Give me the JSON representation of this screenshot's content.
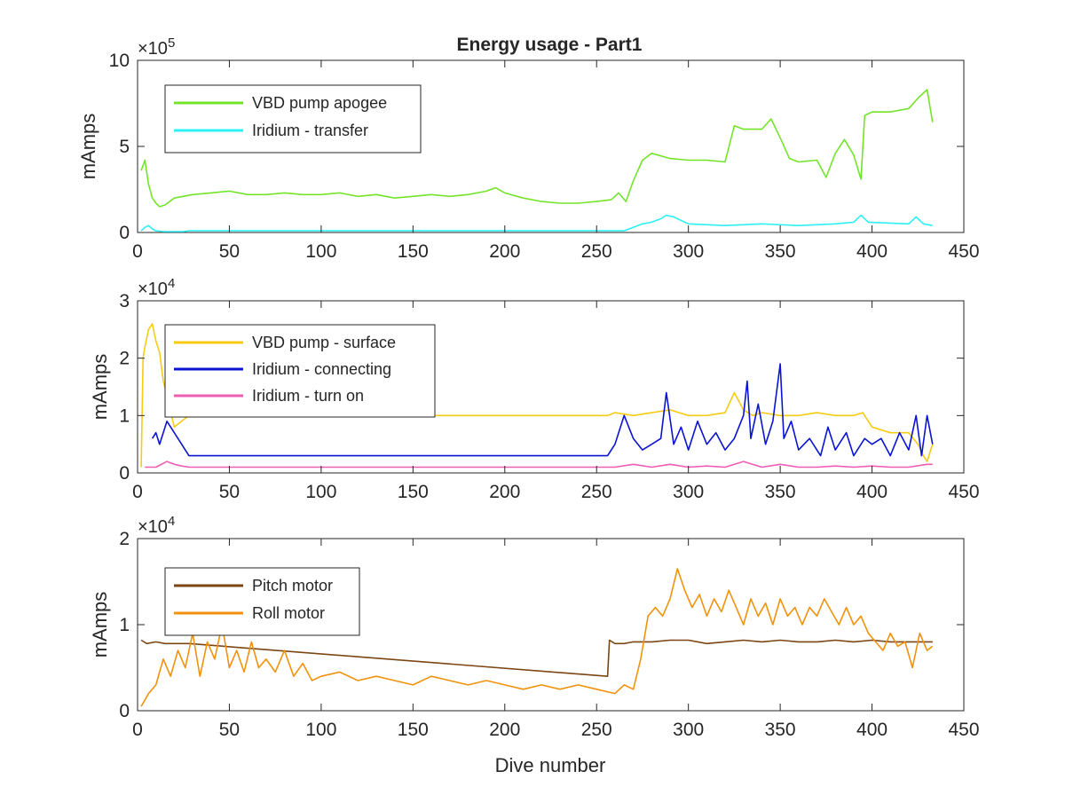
{
  "figure": {
    "title": "Energy usage - Part1",
    "xlabel": "Dive number"
  },
  "chart_data": [
    {
      "type": "line",
      "title": "Energy usage - Part1",
      "xlabel": "",
      "ylabel": "mAmps",
      "xlim": [
        0,
        450
      ],
      "ylim": [
        0,
        10
      ],
      "xticks": [
        0,
        50,
        100,
        150,
        200,
        250,
        300,
        350,
        400,
        450
      ],
      "yticks": [
        0,
        5,
        10
      ],
      "exponent": "5",
      "grid": false,
      "legend_position": "top-left",
      "series": [
        {
          "name": "VBD pump apogee",
          "color": "#74e42a",
          "style": "solid",
          "x": [
            2,
            4,
            6,
            8,
            10,
            12,
            15,
            20,
            30,
            40,
            50,
            60,
            70,
            80,
            90,
            100,
            110,
            120,
            130,
            140,
            150,
            160,
            170,
            180,
            190,
            195,
            200,
            210,
            220,
            230,
            240,
            250,
            258,
            262,
            266,
            270,
            275,
            280,
            290,
            300,
            310,
            320,
            325,
            330,
            340,
            345,
            350,
            355,
            360,
            370,
            375,
            380,
            385,
            390,
            394,
            396,
            400,
            410,
            420,
            425,
            430,
            433
          ],
          "y": [
            3.6,
            4.2,
            2.8,
            2.0,
            1.7,
            1.5,
            1.6,
            2.0,
            2.2,
            2.3,
            2.4,
            2.2,
            2.2,
            2.3,
            2.2,
            2.2,
            2.3,
            2.1,
            2.2,
            2.0,
            2.1,
            2.2,
            2.1,
            2.2,
            2.4,
            2.6,
            2.3,
            2.0,
            1.8,
            1.7,
            1.7,
            1.8,
            1.9,
            2.3,
            1.8,
            3.0,
            4.2,
            4.6,
            4.3,
            4.2,
            4.2,
            4.1,
            6.2,
            6.0,
            6.0,
            6.6,
            5.5,
            4.3,
            4.1,
            4.2,
            3.2,
            4.6,
            5.4,
            4.5,
            3.1,
            6.8,
            7.0,
            7.0,
            7.2,
            7.8,
            8.3,
            6.4
          ]
        },
        {
          "name": "Iridium - transfer",
          "color": "#2df0f5",
          "style": "solid",
          "x": [
            2,
            4,
            6,
            8,
            10,
            14,
            20,
            25,
            28,
            260,
            265,
            270,
            275,
            280,
            285,
            288,
            292,
            296,
            300,
            320,
            340,
            360,
            380,
            390,
            394,
            398,
            420,
            424,
            428,
            433
          ],
          "y": [
            0.1,
            0.3,
            0.4,
            0.2,
            0.1,
            0.05,
            0.05,
            0.05,
            0.1,
            0.1,
            0.1,
            0.3,
            0.5,
            0.6,
            0.8,
            1.0,
            0.9,
            0.7,
            0.5,
            0.4,
            0.5,
            0.4,
            0.5,
            0.6,
            1.0,
            0.6,
            0.5,
            0.9,
            0.5,
            0.4
          ]
        }
      ]
    },
    {
      "type": "line",
      "title": "",
      "xlabel": "",
      "ylabel": "mAmps",
      "xlim": [
        0,
        450
      ],
      "ylim": [
        0,
        3
      ],
      "xticks": [
        0,
        50,
        100,
        150,
        200,
        250,
        300,
        350,
        400,
        450
      ],
      "yticks": [
        0,
        1,
        2,
        3
      ],
      "exponent": "4",
      "grid": false,
      "legend_position": "top-left",
      "series": [
        {
          "name": "VBD pump - surface",
          "color": "#f5cc13",
          "style": "solid",
          "x": [
            2,
            3,
            4,
            6,
            8,
            10,
            12,
            14,
            17,
            20,
            24,
            28,
            256,
            260,
            270,
            280,
            290,
            300,
            310,
            320,
            325,
            330,
            335,
            340,
            350,
            360,
            370,
            380,
            390,
            395,
            400,
            410,
            420,
            425,
            428,
            430,
            433
          ],
          "y": [
            0.1,
            2.0,
            2.2,
            2.5,
            2.6,
            2.3,
            2.1,
            1.6,
            1.2,
            0.8,
            0.9,
            1.0,
            1.0,
            1.05,
            1.0,
            1.05,
            1.1,
            1.0,
            1.0,
            1.05,
            1.4,
            1.1,
            1.0,
            1.05,
            1.0,
            1.0,
            1.05,
            1.0,
            1.0,
            1.05,
            0.8,
            0.7,
            0.7,
            0.5,
            0.3,
            0.2,
            0.5
          ]
        },
        {
          "name": "Iridium - connecting",
          "color": "#0a14d2",
          "style": "solid",
          "x": [
            8,
            10,
            12,
            16,
            20,
            24,
            28,
            256,
            260,
            265,
            270,
            275,
            280,
            285,
            288,
            292,
            296,
            300,
            305,
            310,
            315,
            320,
            325,
            330,
            332,
            334,
            338,
            342,
            346,
            350,
            352,
            356,
            360,
            366,
            372,
            376,
            380,
            386,
            390,
            396,
            400,
            405,
            410,
            415,
            420,
            424,
            427,
            430,
            433
          ],
          "y": [
            0.6,
            0.7,
            0.5,
            0.9,
            0.7,
            0.5,
            0.3,
            0.3,
            0.5,
            1.0,
            0.6,
            0.4,
            0.5,
            0.6,
            1.4,
            0.5,
            0.8,
            0.4,
            0.9,
            0.5,
            0.7,
            0.4,
            0.6,
            1.0,
            1.6,
            0.6,
            1.2,
            0.5,
            0.9,
            1.9,
            0.6,
            0.9,
            0.4,
            0.6,
            0.3,
            0.8,
            0.4,
            0.7,
            0.3,
            0.6,
            0.5,
            0.6,
            0.3,
            0.7,
            0.4,
            1.0,
            0.3,
            1.0,
            0.5
          ]
        },
        {
          "name": "Iridium - turn on",
          "color": "#ef5cb4",
          "style": "solid",
          "x": [
            4,
            10,
            16,
            20,
            24,
            28,
            256,
            260,
            270,
            280,
            290,
            300,
            310,
            320,
            330,
            340,
            350,
            360,
            370,
            380,
            390,
            400,
            410,
            420,
            430,
            433
          ],
          "y": [
            0.1,
            0.1,
            0.2,
            0.15,
            0.12,
            0.1,
            0.1,
            0.1,
            0.15,
            0.1,
            0.15,
            0.1,
            0.12,
            0.1,
            0.2,
            0.1,
            0.15,
            0.1,
            0.1,
            0.12,
            0.1,
            0.12,
            0.1,
            0.1,
            0.15,
            0.15
          ]
        }
      ]
    },
    {
      "type": "line",
      "title": "",
      "xlabel": "Dive number",
      "ylabel": "mAmps",
      "xlim": [
        0,
        450
      ],
      "ylim": [
        0,
        2
      ],
      "xticks": [
        0,
        50,
        100,
        150,
        200,
        250,
        300,
        350,
        400,
        450
      ],
      "yticks": [
        0,
        1,
        2
      ],
      "exponent": "4",
      "grid": false,
      "legend_position": "top-left",
      "series": [
        {
          "name": "Pitch motor",
          "color": "#7b4614",
          "style": "solid",
          "x": [
            2,
            5,
            10,
            15,
            20,
            25,
            28,
            256,
            257,
            260,
            265,
            270,
            280,
            290,
            300,
            310,
            320,
            330,
            340,
            350,
            360,
            370,
            380,
            390,
            400,
            410,
            420,
            430,
            433
          ],
          "y": [
            0.82,
            0.78,
            0.8,
            0.78,
            0.78,
            0.78,
            0.78,
            0.4,
            0.82,
            0.78,
            0.78,
            0.8,
            0.8,
            0.82,
            0.82,
            0.78,
            0.8,
            0.82,
            0.8,
            0.82,
            0.8,
            0.8,
            0.82,
            0.8,
            0.82,
            0.8,
            0.8,
            0.8,
            0.8
          ]
        },
        {
          "name": "Roll motor",
          "color": "#f0920c",
          "style": "solid",
          "x": [
            2,
            6,
            10,
            14,
            18,
            22,
            26,
            30,
            34,
            38,
            42,
            46,
            50,
            54,
            58,
            62,
            66,
            70,
            75,
            80,
            85,
            90,
            95,
            100,
            110,
            120,
            130,
            140,
            150,
            160,
            170,
            180,
            190,
            200,
            210,
            220,
            230,
            240,
            250,
            260,
            265,
            270,
            274,
            278,
            282,
            286,
            290,
            294,
            298,
            302,
            306,
            310,
            314,
            318,
            322,
            326,
            330,
            334,
            338,
            342,
            346,
            350,
            354,
            358,
            362,
            366,
            370,
            374,
            378,
            382,
            386,
            390,
            394,
            398,
            402,
            406,
            410,
            414,
            418,
            422,
            426,
            430,
            433
          ],
          "y": [
            0.05,
            0.2,
            0.3,
            0.6,
            0.4,
            0.7,
            0.5,
            0.9,
            0.4,
            0.8,
            0.6,
            1.0,
            0.5,
            0.7,
            0.45,
            0.8,
            0.5,
            0.6,
            0.45,
            0.7,
            0.4,
            0.55,
            0.35,
            0.4,
            0.45,
            0.35,
            0.4,
            0.35,
            0.3,
            0.4,
            0.35,
            0.3,
            0.35,
            0.3,
            0.25,
            0.3,
            0.25,
            0.3,
            0.25,
            0.2,
            0.3,
            0.25,
            0.6,
            1.1,
            1.2,
            1.1,
            1.3,
            1.65,
            1.4,
            1.2,
            1.35,
            1.1,
            1.3,
            1.15,
            1.4,
            1.2,
            1.0,
            1.3,
            1.1,
            1.25,
            1.0,
            1.3,
            1.1,
            1.2,
            1.0,
            1.2,
            1.1,
            1.3,
            1.15,
            1.0,
            1.2,
            1.0,
            1.1,
            0.9,
            0.8,
            0.7,
            0.9,
            0.75,
            0.8,
            0.5,
            0.9,
            0.7,
            0.75
          ]
        }
      ]
    }
  ]
}
